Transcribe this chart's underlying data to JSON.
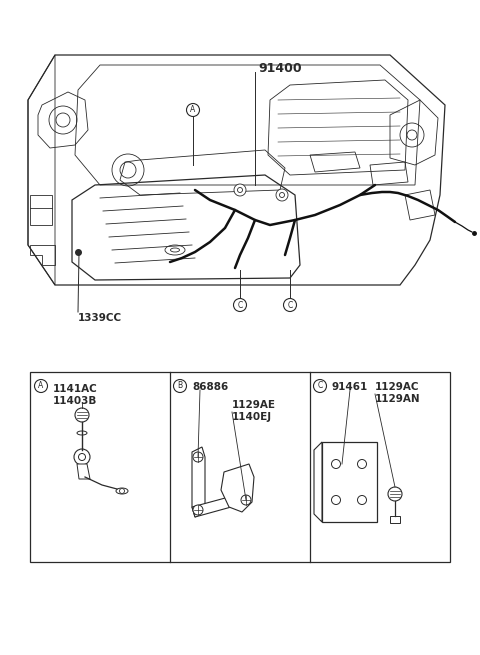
{
  "bg_color": "#ffffff",
  "line_color": "#2a2a2a",
  "thick_line": "#111111",
  "text_color": "#1a1a1a",
  "main_label": "91400",
  "label_1339CC": "1339CC",
  "box_A_labels": [
    "1141AC",
    "11403B"
  ],
  "box_B_labels": [
    "86886",
    "1129AE",
    "1140EJ"
  ],
  "box_C_labels": [
    "91461",
    "1129AC",
    "1129AN"
  ],
  "fig_width": 4.8,
  "fig_height": 6.55,
  "dpi": 100
}
